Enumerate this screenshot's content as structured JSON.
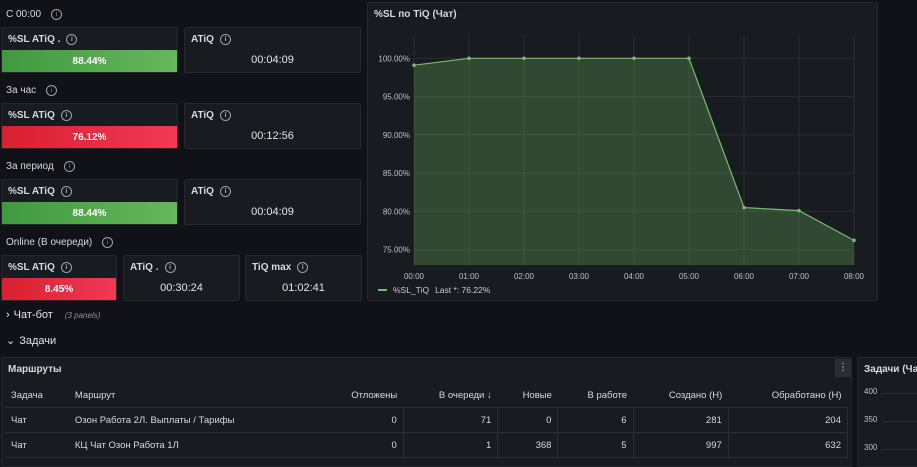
{
  "rows": {
    "r1": "С 00:00",
    "r2": "За час",
    "r3": "За период",
    "r4": "Online (В очереди)"
  },
  "stats": {
    "r1_sl_title": "%SL ATiQ .",
    "r1_sl_value": "88.44%",
    "r1_atiq_title": "ATiQ",
    "r1_atiq_value": "00:04:09",
    "r2_sl_title": "%SL ATiQ",
    "r2_sl_value": "76.12%",
    "r2_atiq_title": "ATiQ",
    "r2_atiq_value": "00:12:56",
    "r3_sl_title": "%SL ATiQ",
    "r3_sl_value": "88.44%",
    "r3_atiq_title": "ATiQ",
    "r3_atiq_value": "00:04:09",
    "r4_sl_title": "%SL ATiQ",
    "r4_sl_value": "8.45%",
    "r4_atiq_title": "ATiQ .",
    "r4_atiq_value": "00:30:24",
    "r4_tiq_title": "TiQ max",
    "r4_tiq_value": "01:02:41"
  },
  "colors": {
    "ok": "#56a64b",
    "bad": "#e02f44",
    "series": "#73bf69"
  },
  "sections": {
    "chatbot": "Чат-бот",
    "chatbot_sub": "(3 panels)",
    "tasks": "Задачи"
  },
  "chart": {
    "title": "%SL по TiQ (Чат)",
    "legend_label": "%SL_TiQ",
    "legend_last": "Last *: 76.22%",
    "y_ticks": [
      "100.00%",
      "95.00%",
      "90.00%",
      "85.00%",
      "80.00%",
      "75.00%"
    ],
    "x_ticks": [
      "00:00",
      "01:00",
      "02:00",
      "03:00",
      "04:00",
      "05:00",
      "06:00",
      "07:00",
      "08:00"
    ]
  },
  "chart_data": {
    "type": "area",
    "title": "%SL по TiQ (Чат)",
    "xlabel": "",
    "ylabel": "",
    "x": [
      "00:00",
      "01:00",
      "02:00",
      "03:00",
      "04:00",
      "05:00",
      "06:00",
      "07:00",
      "08:00"
    ],
    "series": [
      {
        "name": "%SL_TiQ",
        "values": [
          99.1,
          100.0,
          100.0,
          100.0,
          100.0,
          100.0,
          80.5,
          80.1,
          76.22
        ]
      }
    ],
    "ylim": [
      73.0,
      102.0
    ],
    "grid": true,
    "legend": "bottom-left"
  },
  "routes": {
    "title": "Маршруты",
    "menu": "⋮",
    "headers": [
      "Задача",
      "Маршрут",
      "Отложены",
      "В очереди ↓",
      "Новые",
      "В работе",
      "Создано (Н)",
      "Обработано (Н)"
    ],
    "rows": [
      [
        "Чат",
        "Озон Работа 2Л. Выплаты / Тарифы",
        "0",
        "71",
        "0",
        "6",
        "281",
        "204"
      ],
      [
        "Чат",
        "КЦ Чат Озон Работа 1Л",
        "0",
        "1",
        "368",
        "5",
        "997",
        "632"
      ]
    ]
  },
  "tasks_panel": {
    "title": "Задачи (Ча",
    "y_ticks": [
      "400",
      "350",
      "300"
    ]
  }
}
